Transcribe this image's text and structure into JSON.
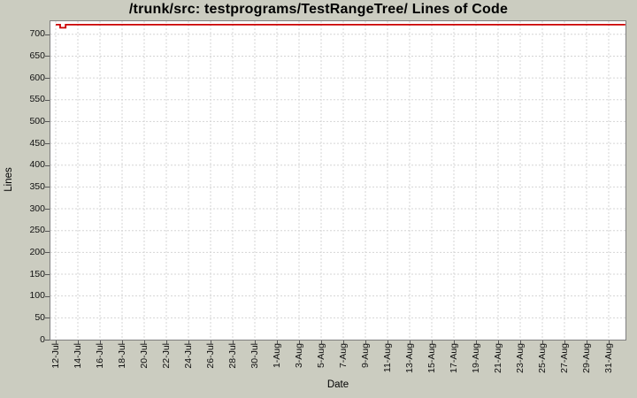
{
  "chart_data": {
    "type": "line",
    "title": "/trunk/src: testprograms/TestRangeTree/ Lines of Code",
    "xlabel": "Date",
    "ylabel": "Lines",
    "x_tick_labels": [
      "12-Jul",
      "14-Jul",
      "16-Jul",
      "18-Jul",
      "20-Jul",
      "22-Jul",
      "24-Jul",
      "26-Jul",
      "28-Jul",
      "30-Jul",
      "1-Aug",
      "3-Aug",
      "5-Aug",
      "7-Aug",
      "9-Aug",
      "11-Aug",
      "13-Aug",
      "15-Aug",
      "17-Aug",
      "19-Aug",
      "21-Aug",
      "23-Aug",
      "25-Aug",
      "27-Aug",
      "29-Aug",
      "31-Aug"
    ],
    "x_tick_interval_days": 2,
    "x_domain_days": [
      -0.48,
      51.52
    ],
    "y_ticks": [
      0,
      50,
      100,
      150,
      200,
      250,
      300,
      350,
      400,
      450,
      500,
      550,
      600,
      650,
      700
    ],
    "y_domain": [
      0,
      730
    ],
    "grid": true,
    "grid_style": "dashed",
    "legend_position": "none",
    "series": [
      {
        "name": "Lines of Code",
        "color": "#cc0000",
        "step": true,
        "points": [
          {
            "day": 0,
            "value": 722
          },
          {
            "day": 0.4,
            "value": 715
          },
          {
            "day": 0.9,
            "value": 722
          },
          {
            "day": 51.5,
            "value": 722
          }
        ]
      }
    ]
  },
  "colors": {
    "background": "#cbccc0",
    "plot_background": "#ffffff",
    "gridline": "#d5d5d5",
    "plot_border": "#7f7f7f",
    "tick_mark": "#555555",
    "series_red": "#cc0000",
    "text": "#000000"
  }
}
